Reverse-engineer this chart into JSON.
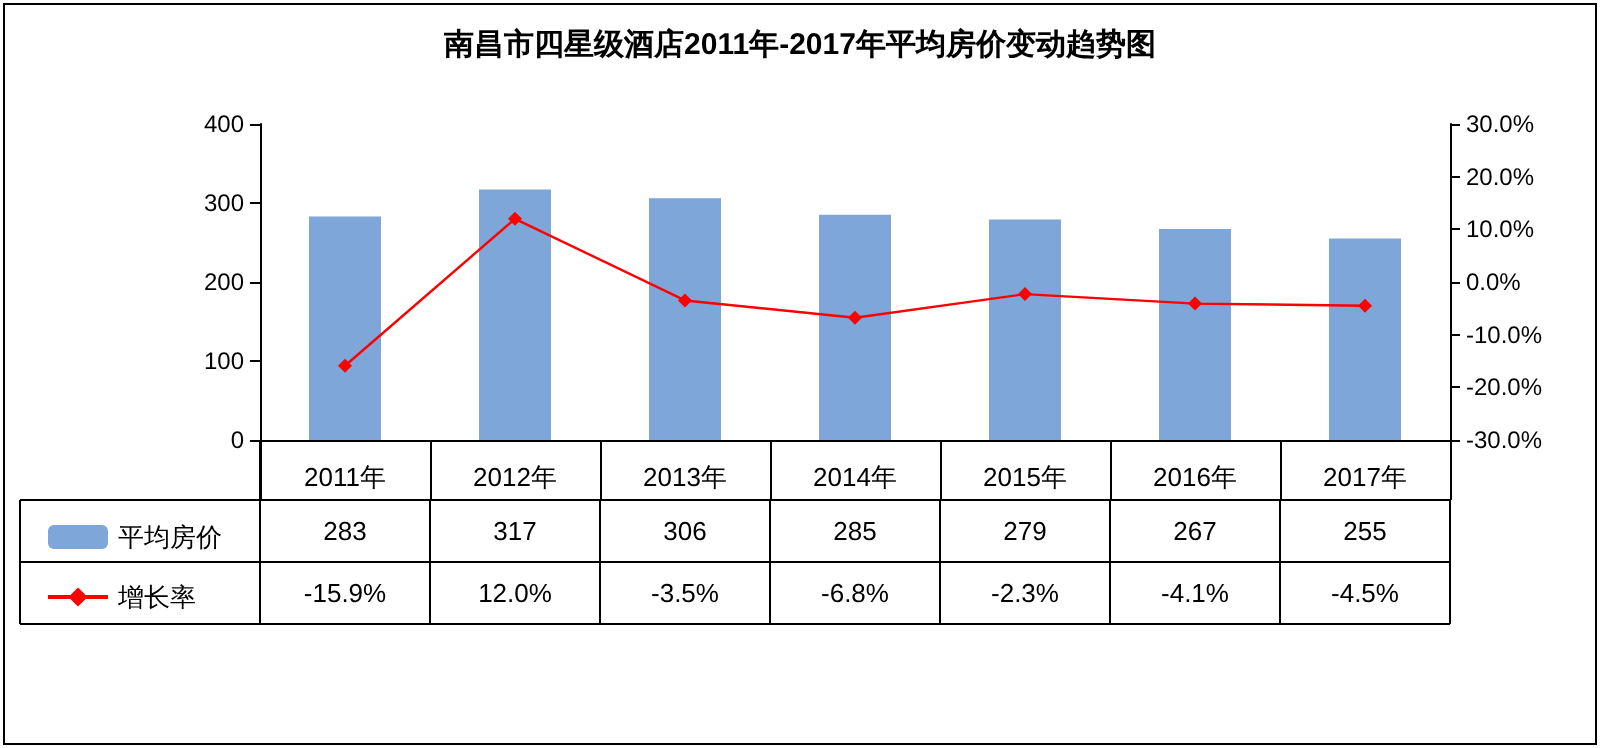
{
  "chart_data": {
    "type": "bar",
    "title": "南昌市四星级酒店2011年-2017年平均房价变动趋势图",
    "categories": [
      "2011年",
      "2012年",
      "2013年",
      "2014年",
      "2015年",
      "2016年",
      "2017年"
    ],
    "series": [
      {
        "name": "平均房价",
        "color": "#7ea6d8",
        "values": [
          283,
          317,
          306,
          285,
          279,
          267,
          255
        ],
        "value_labels": [
          "283",
          "317",
          "306",
          "285",
          "279",
          "267",
          "255"
        ]
      },
      {
        "name": "增长率",
        "type": "line",
        "axis": "y2",
        "color": "#ff0000",
        "marker": "diamond",
        "values": [
          -15.9,
          12.0,
          -3.5,
          -6.8,
          -2.3,
          -4.1,
          -4.5
        ],
        "value_labels": [
          "-15.9%",
          "12.0%",
          "-3.5%",
          "-6.8%",
          "-2.3%",
          "-4.1%",
          "-4.5%"
        ]
      }
    ],
    "ylim": [
      0,
      400
    ],
    "yticks": [
      0,
      100,
      200,
      300,
      400
    ],
    "y2lim": [
      -30,
      30
    ],
    "y2ticks": [
      {
        "value": -30,
        "label": "-30.0%"
      },
      {
        "value": -20,
        "label": "-20.0%"
      },
      {
        "value": -10,
        "label": "-10.0%"
      },
      {
        "value": 0,
        "label": "0.0%"
      },
      {
        "value": 10,
        "label": "10.0%"
      },
      {
        "value": 20,
        "label": "20.0%"
      },
      {
        "value": 30,
        "label": "30.0%"
      }
    ],
    "grid": false,
    "legend": "bottom left"
  }
}
